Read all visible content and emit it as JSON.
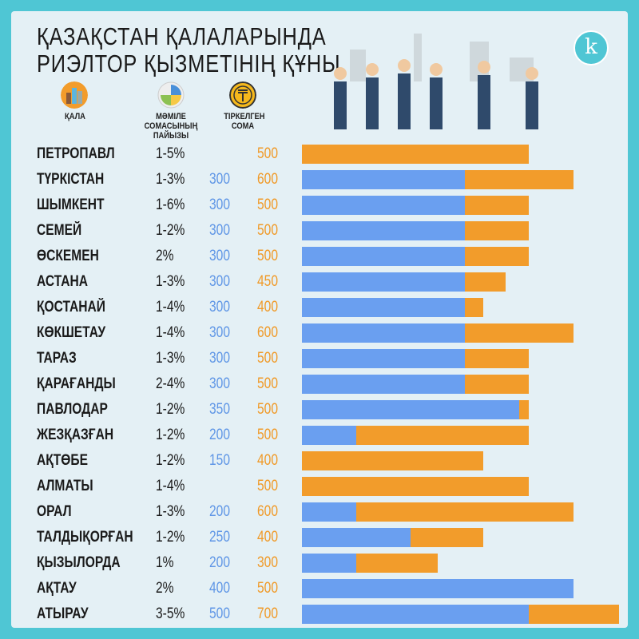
{
  "title_line1": "ҚАЗАҚСТАН ҚАЛАЛАРЫНДА",
  "title_line2": "РИЭЛТОР ҚЫЗМЕТІНІҢ ҚҰНЫ",
  "logo_letter": "k",
  "headers": {
    "city": "ҚАЛА",
    "percent": "МӘМІЛЕ СОМАСЫНЫҢ ПАЙЫЗЫ",
    "fixed": "ТІРКЕЛГЕН СОМА"
  },
  "icons": {
    "city": "city-buildings-icon",
    "percent": "pie-percent-icon",
    "fixed": "tenge-coin-icon",
    "illustration": "realtors-city-illustration"
  },
  "colors": {
    "blue": "#6a9ff0",
    "orange": "#f29c2b",
    "border": "#4fc6d4",
    "background": "#e4f0f5"
  },
  "chart_data": {
    "type": "bar",
    "orientation": "horizontal",
    "categories": [
      "ПЕТРОПАВЛ",
      "ТҮРКІСТАН",
      "ШЫМКЕНТ",
      "СЕМЕЙ",
      "ӨСКЕМЕН",
      "АСТАНА",
      "ҚОСТАНАЙ",
      "КӨКШЕТАУ",
      "ТАРАЗ",
      "ҚАРАҒАНДЫ",
      "ПАВЛОДАР",
      "ЖЕЗҚАЗҒАН",
      "АҚТӨБЕ",
      "АЛМАТЫ",
      "ОРАЛ",
      "ТАЛДЫҚОРҒАН",
      "ҚЫЗЫЛОРДА",
      "АҚТАУ",
      "АТЫРАУ"
    ],
    "percent": [
      "1-5%",
      "1-3%",
      "1-6%",
      "1-2%",
      "2%",
      "1-3%",
      "1-4%",
      "1-4%",
      "1-3%",
      "2-4%",
      "1-2%",
      "1-2%",
      "1-2%",
      "1-4%",
      "1-3%",
      "1-2%",
      "1%",
      "2%",
      "3-5%"
    ],
    "series": [
      {
        "color": "#6a9ff0",
        "values": [
          null,
          300,
          300,
          300,
          300,
          300,
          300,
          300,
          300,
          300,
          350,
          200,
          150,
          null,
          200,
          250,
          200,
          400,
          500
        ]
      },
      {
        "color": "#f29c2b",
        "values": [
          500,
          600,
          500,
          500,
          500,
          450,
          400,
          600,
          500,
          500,
          500,
          500,
          400,
          500,
          600,
          400,
          300,
          500,
          700
        ]
      }
    ]
  }
}
